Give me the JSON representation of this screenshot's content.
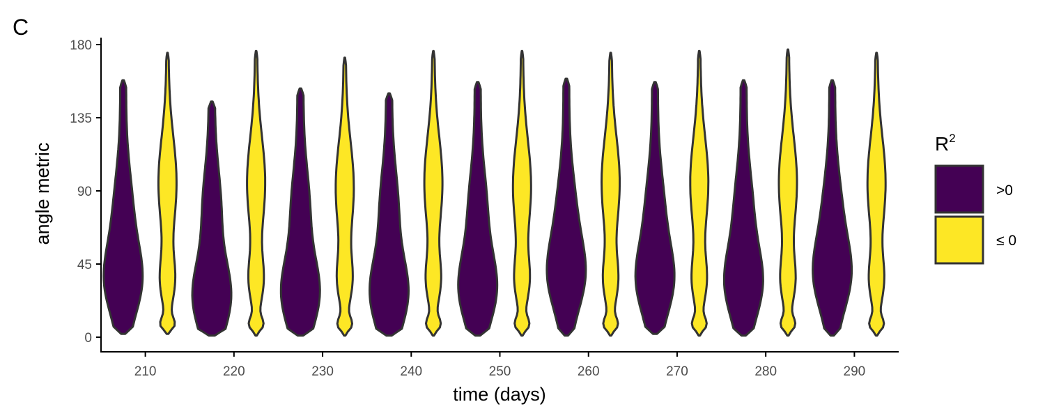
{
  "panel_label": "C",
  "chart_data": {
    "type": "violin",
    "xlabel": "time (days)",
    "ylabel": "angle metric",
    "xlim": [
      205,
      295
    ],
    "ylim": [
      0,
      180
    ],
    "x_ticks": [
      210,
      220,
      230,
      240,
      250,
      260,
      270,
      280,
      290
    ],
    "y_ticks": [
      0,
      45,
      90,
      135,
      180
    ],
    "grid": false,
    "legend": {
      "title": "R",
      "title_superscript": "2",
      "placement": "right",
      "entries": [
        {
          "label": ">0",
          "color": "#440154"
        },
        {
          "label": "≤ 0",
          "color": "#FDE725"
        }
      ]
    },
    "series": [
      {
        "name": ">0",
        "color": "#440154",
        "x": [
          207.5,
          217.5,
          227.5,
          237.5,
          247.5,
          257.5,
          267.5,
          277.5,
          287.5
        ],
        "min": [
          2,
          1,
          1,
          1,
          1,
          1,
          2,
          1,
          1
        ],
        "max": [
          158,
          145,
          153,
          150,
          157,
          159,
          157,
          158,
          158
        ],
        "mode": [
          35,
          25,
          27,
          27,
          30,
          38,
          35,
          33,
          38
        ]
      },
      {
        "name": "≤ 0",
        "color": "#FDE725",
        "x": [
          212.5,
          222.5,
          232.5,
          242.5,
          252.5,
          262.5,
          272.5,
          282.5,
          292.5
        ],
        "min": [
          2,
          1,
          1,
          1,
          1,
          1,
          1,
          1,
          1
        ],
        "max": [
          175,
          176,
          172,
          176,
          176,
          175,
          176,
          177,
          175
        ],
        "upper_mode": [
          95,
          95,
          92,
          95,
          93,
          95,
          95,
          95,
          95
        ]
      }
    ]
  },
  "colors": {
    "outline": "#333333",
    "axis": "#000000"
  }
}
